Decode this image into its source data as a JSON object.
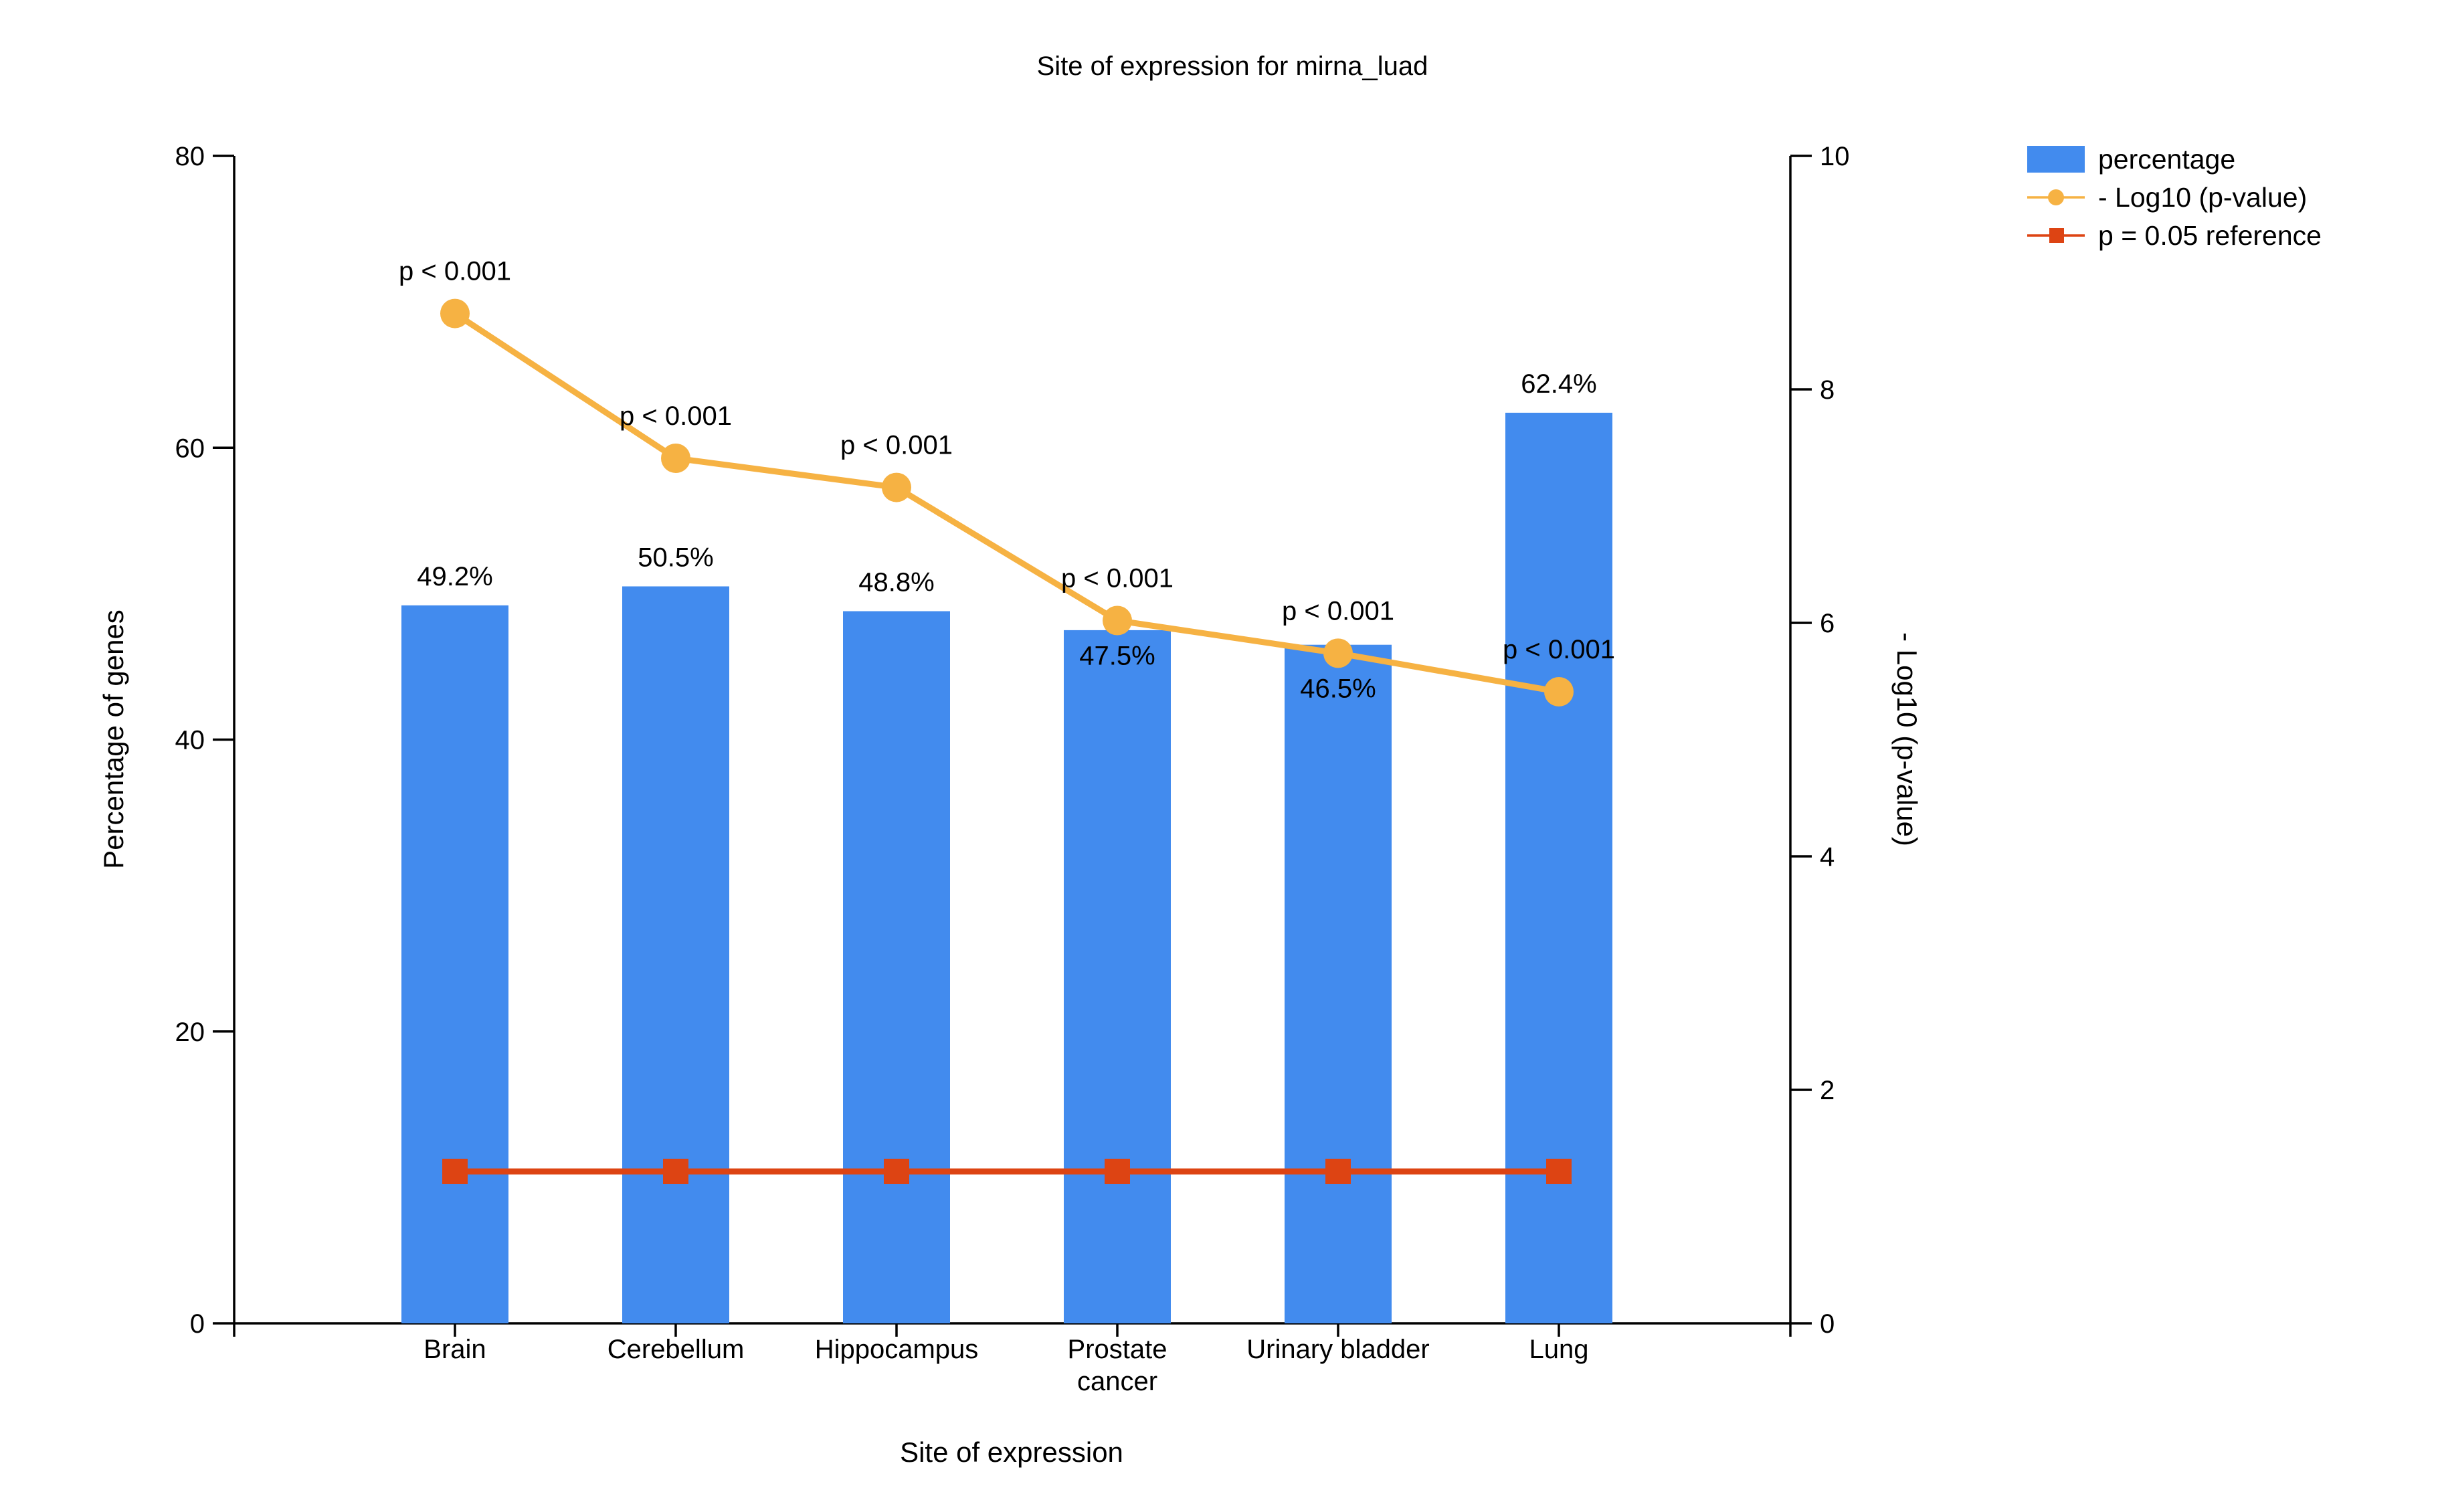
{
  "chart_data": {
    "type": "bar",
    "title": "Site of expression for mirna_luad",
    "xlabel": "Site of expression",
    "ylabel": "Percentage of genes",
    "y2label": "- Log10 (p-value)",
    "categories": [
      [
        "Brain"
      ],
      [
        "Cerebellum"
      ],
      [
        "Hippocampus"
      ],
      [
        "Prostate",
        "cancer"
      ],
      [
        "Urinary bladder"
      ],
      [
        "Lung"
      ]
    ],
    "ylim": [
      0,
      80
    ],
    "y2lim": [
      0,
      10
    ],
    "y_ticks": [
      0,
      20,
      40,
      60,
      80
    ],
    "y2_ticks": [
      0,
      2,
      4,
      6,
      8,
      10
    ],
    "grid": false,
    "legend_position": "top-right",
    "series": [
      {
        "name": "percentage",
        "type": "bar",
        "axis": "left",
        "color": "#428BEE",
        "values": [
          49.2,
          50.5,
          48.8,
          47.5,
          46.5,
          62.4
        ],
        "labels": [
          "49.2%",
          "50.5%",
          "48.8%",
          "47.5%",
          "46.5%",
          "62.4%"
        ]
      },
      {
        "name": "- Log10 (p-value)",
        "type": "line",
        "marker": "circle",
        "axis": "right",
        "color": "#F6B243",
        "values": [
          8.65,
          7.41,
          7.16,
          6.02,
          5.74,
          5.41
        ],
        "labels": [
          "p < 0.001",
          "p < 0.001",
          "p < 0.001",
          "p < 0.001",
          "p < 0.001",
          "p < 0.001"
        ]
      },
      {
        "name": "p = 0.05 reference",
        "type": "line",
        "marker": "square",
        "axis": "right",
        "color": "#DD4413",
        "values": [
          1.301,
          1.301,
          1.301,
          1.301,
          1.301,
          1.301
        ]
      }
    ]
  }
}
